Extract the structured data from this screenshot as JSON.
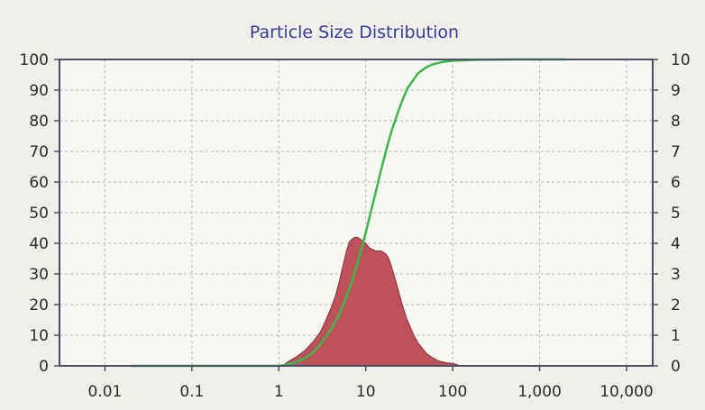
{
  "chart_data": {
    "type": "area",
    "title": "Particle Size Distribution",
    "xlabel": "",
    "ylabel_left": "",
    "ylabel_right": "",
    "x_scale": "log",
    "xlim": [
      0.003,
      20000
    ],
    "ylim_left": [
      0,
      100
    ],
    "ylim_right": [
      0,
      10
    ],
    "grid": true,
    "x_ticks": [
      0.01,
      0.1,
      1,
      10,
      100,
      1000,
      10000
    ],
    "x_tick_labels": [
      "0.01",
      "0.1",
      "1",
      "10",
      "100",
      "1,000",
      "10,000"
    ],
    "y_left_ticks": [
      0,
      10,
      20,
      30,
      40,
      50,
      60,
      70,
      80,
      90,
      100
    ],
    "y_left_tick_labels": [
      "0",
      "10",
      "20",
      "30",
      "40",
      "50",
      "60",
      "70",
      "80",
      "90",
      "100"
    ],
    "y_right_ticks": [
      0,
      1,
      2,
      3,
      4,
      5,
      6,
      7,
      8,
      9,
      10
    ],
    "y_right_tick_labels": [
      "0",
      "1",
      "2",
      "3",
      "4",
      "5",
      "6",
      "7",
      "8",
      "9",
      "10"
    ],
    "series": [
      {
        "kind": "area",
        "axis": "right",
        "color": "#b8434d",
        "x": [
          1.1,
          1.3,
          1.6,
          2.0,
          2.5,
          3.0,
          3.5,
          4.0,
          4.5,
          5.0,
          5.5,
          6.0,
          6.5,
          7.0,
          7.5,
          8.0,
          8.5,
          9.0,
          10.0,
          11.0,
          12.0,
          13.0,
          14.0,
          15.0,
          16.0,
          17.0,
          18.0,
          19.0,
          20.0,
          22.0,
          24.0,
          26.0,
          28.0,
          30.0,
          35.0,
          40.0,
          50.0,
          60.0,
          70.0,
          85.0,
          100.0,
          115.0,
          130.0
        ],
        "values": [
          0.0,
          0.15,
          0.3,
          0.5,
          0.8,
          1.1,
          1.5,
          1.9,
          2.3,
          2.8,
          3.3,
          3.75,
          4.05,
          4.15,
          4.2,
          4.2,
          4.15,
          4.1,
          4.0,
          3.85,
          3.8,
          3.75,
          3.75,
          3.75,
          3.7,
          3.65,
          3.55,
          3.4,
          3.2,
          2.8,
          2.4,
          2.05,
          1.75,
          1.5,
          1.05,
          0.75,
          0.4,
          0.25,
          0.15,
          0.1,
          0.08,
          0.03,
          0.0
        ]
      },
      {
        "kind": "line",
        "axis": "left",
        "color": "#3cb84a",
        "x": [
          0.02,
          0.1,
          0.5,
          1.0,
          1.2,
          1.5,
          2.0,
          2.5,
          3.0,
          4.0,
          5.0,
          6.0,
          7.0,
          8.0,
          9.0,
          10.0,
          12.0,
          15.0,
          18.0,
          20.0,
          25.0,
          30.0,
          40.0,
          50.0,
          60.0,
          80.0,
          100.0,
          150.0,
          200.0,
          500.0,
          1000.0,
          2000.0
        ],
        "values": [
          0,
          0,
          0,
          0,
          0.3,
          1.0,
          2.5,
          4.5,
          7.0,
          12.0,
          17.0,
          22.5,
          28.0,
          33.5,
          38.5,
          43.5,
          52.5,
          64.0,
          72.5,
          77.0,
          85.0,
          90.5,
          95.5,
          97.5,
          98.5,
          99.3,
          99.6,
          99.8,
          99.9,
          100,
          100,
          100
        ]
      }
    ]
  }
}
